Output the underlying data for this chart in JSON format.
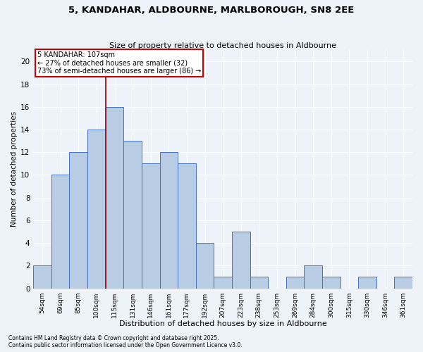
{
  "title": "5, KANDAHAR, ALDBOURNE, MARLBOROUGH, SN8 2EE",
  "subtitle": "Size of property relative to detached houses in Aldbourne",
  "xlabel": "Distribution of detached houses by size in Aldbourne",
  "ylabel": "Number of detached properties",
  "categories": [
    "54sqm",
    "69sqm",
    "85sqm",
    "100sqm",
    "115sqm",
    "131sqm",
    "146sqm",
    "161sqm",
    "177sqm",
    "192sqm",
    "207sqm",
    "223sqm",
    "238sqm",
    "253sqm",
    "269sqm",
    "284sqm",
    "300sqm",
    "315sqm",
    "330sqm",
    "346sqm",
    "361sqm"
  ],
  "values": [
    2,
    10,
    12,
    14,
    16,
    13,
    11,
    12,
    11,
    4,
    1,
    5,
    1,
    0,
    1,
    2,
    1,
    0,
    1,
    0,
    1
  ],
  "bar_color": "#b8cce4",
  "bar_edge_color": "#4472c4",
  "property_line_x": 3.5,
  "annotation_title": "5 KANDAHAR: 107sqm",
  "annotation_line1": "← 27% of detached houses are smaller (32)",
  "annotation_line2": "73% of semi-detached houses are larger (86) →",
  "vline_color": "#8b0000",
  "annotation_box_color": "#ffffff",
  "annotation_box_edge": "#cc0000",
  "ylim": [
    0,
    21
  ],
  "yticks": [
    0,
    2,
    4,
    6,
    8,
    10,
    12,
    14,
    16,
    18,
    20
  ],
  "footnote1": "Contains HM Land Registry data © Crown copyright and database right 2025.",
  "footnote2": "Contains public sector information licensed under the Open Government Licence v3.0.",
  "background_color": "#eef2f9",
  "grid_color": "#ffffff"
}
